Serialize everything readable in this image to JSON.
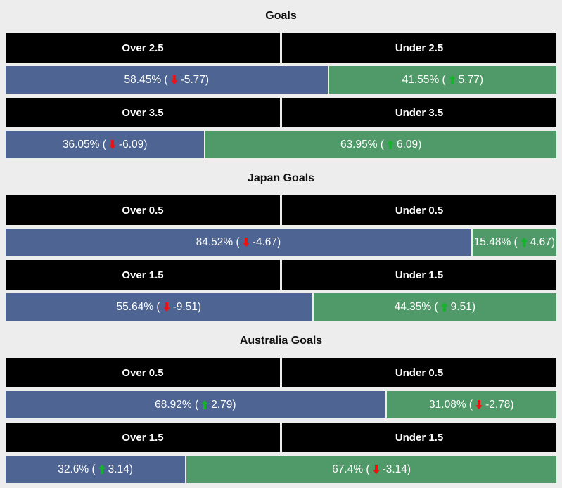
{
  "colors": {
    "page_bg": "#ededed",
    "header_bg": "#000000",
    "header_text": "#ffffff",
    "over_bar": "#4e6593",
    "under_bar": "#4f9a68",
    "bar_text": "#ffffff",
    "up_arrow": "#15b32b",
    "down_arrow": "#ee1111"
  },
  "sections": [
    {
      "title": "Goals",
      "markets": [
        {
          "over_header": "Over 2.5",
          "under_header": "Under 2.5",
          "over": {
            "pct_label": "58.45% (",
            "delta_label": "-5.77)",
            "trend": "down",
            "width_pct": 58.45
          },
          "under": {
            "pct_label": "41.55% (",
            "delta_label": "5.77)",
            "trend": "up"
          }
        },
        {
          "over_header": "Over 3.5",
          "under_header": "Under 3.5",
          "over": {
            "pct_label": "36.05% (",
            "delta_label": "-6.09)",
            "trend": "down",
            "width_pct": 36.05
          },
          "under": {
            "pct_label": "63.95% (",
            "delta_label": "6.09)",
            "trend": "up"
          }
        }
      ]
    },
    {
      "title": "Japan Goals",
      "markets": [
        {
          "over_header": "Over 0.5",
          "under_header": "Under 0.5",
          "over": {
            "pct_label": "84.52% (",
            "delta_label": "-4.67)",
            "trend": "down",
            "width_pct": 84.52
          },
          "under": {
            "pct_label": "15.48% (",
            "delta_label": "4.67)",
            "trend": "up"
          }
        },
        {
          "over_header": "Over 1.5",
          "under_header": "Under 1.5",
          "over": {
            "pct_label": "55.64% (",
            "delta_label": "-9.51)",
            "trend": "down",
            "width_pct": 55.64
          },
          "under": {
            "pct_label": "44.35% (",
            "delta_label": "9.51)",
            "trend": "up"
          }
        }
      ]
    },
    {
      "title": "Australia Goals",
      "markets": [
        {
          "over_header": "Over 0.5",
          "under_header": "Under 0.5",
          "over": {
            "pct_label": "68.92% (",
            "delta_label": "2.79)",
            "trend": "up",
            "width_pct": 68.92
          },
          "under": {
            "pct_label": "31.08% (",
            "delta_label": "-2.78)",
            "trend": "down"
          }
        },
        {
          "over_header": "Over 1.5",
          "under_header": "Under 1.5",
          "over": {
            "pct_label": "32.6% (",
            "delta_label": "3.14)",
            "trend": "up",
            "width_pct": 32.6
          },
          "under": {
            "pct_label": "67.4% (",
            "delta_label": "-3.14)",
            "trend": "down"
          }
        }
      ]
    }
  ],
  "chart_data": [
    {
      "type": "bar",
      "title": "Goals",
      "categories": [
        "Over 2.5",
        "Under 2.5",
        "Over 3.5",
        "Under 3.5"
      ],
      "series": [
        {
          "name": "probability_pct",
          "values": [
            58.45,
            41.55,
            36.05,
            63.95
          ]
        },
        {
          "name": "swing",
          "values": [
            -5.77,
            5.77,
            -6.09,
            6.09
          ]
        }
      ],
      "xlabel": "",
      "ylabel": "",
      "ylim": [
        0,
        100
      ],
      "grid": false,
      "legend": "none"
    },
    {
      "type": "bar",
      "title": "Japan Goals",
      "categories": [
        "Over 0.5",
        "Under 0.5",
        "Over 1.5",
        "Under 1.5"
      ],
      "series": [
        {
          "name": "probability_pct",
          "values": [
            84.52,
            15.48,
            55.64,
            44.35
          ]
        },
        {
          "name": "swing",
          "values": [
            -4.67,
            4.67,
            -9.51,
            9.51
          ]
        }
      ],
      "xlabel": "",
      "ylabel": "",
      "ylim": [
        0,
        100
      ],
      "grid": false,
      "legend": "none"
    },
    {
      "type": "bar",
      "title": "Australia Goals",
      "categories": [
        "Over 0.5",
        "Under 0.5",
        "Over 1.5",
        "Under 1.5"
      ],
      "series": [
        {
          "name": "probability_pct",
          "values": [
            68.92,
            31.08,
            32.6,
            67.4
          ]
        },
        {
          "name": "swing",
          "values": [
            2.79,
            -2.78,
            3.14,
            -3.14
          ]
        }
      ],
      "xlabel": "",
      "ylabel": "",
      "ylim": [
        0,
        100
      ],
      "grid": false,
      "legend": "none"
    }
  ]
}
